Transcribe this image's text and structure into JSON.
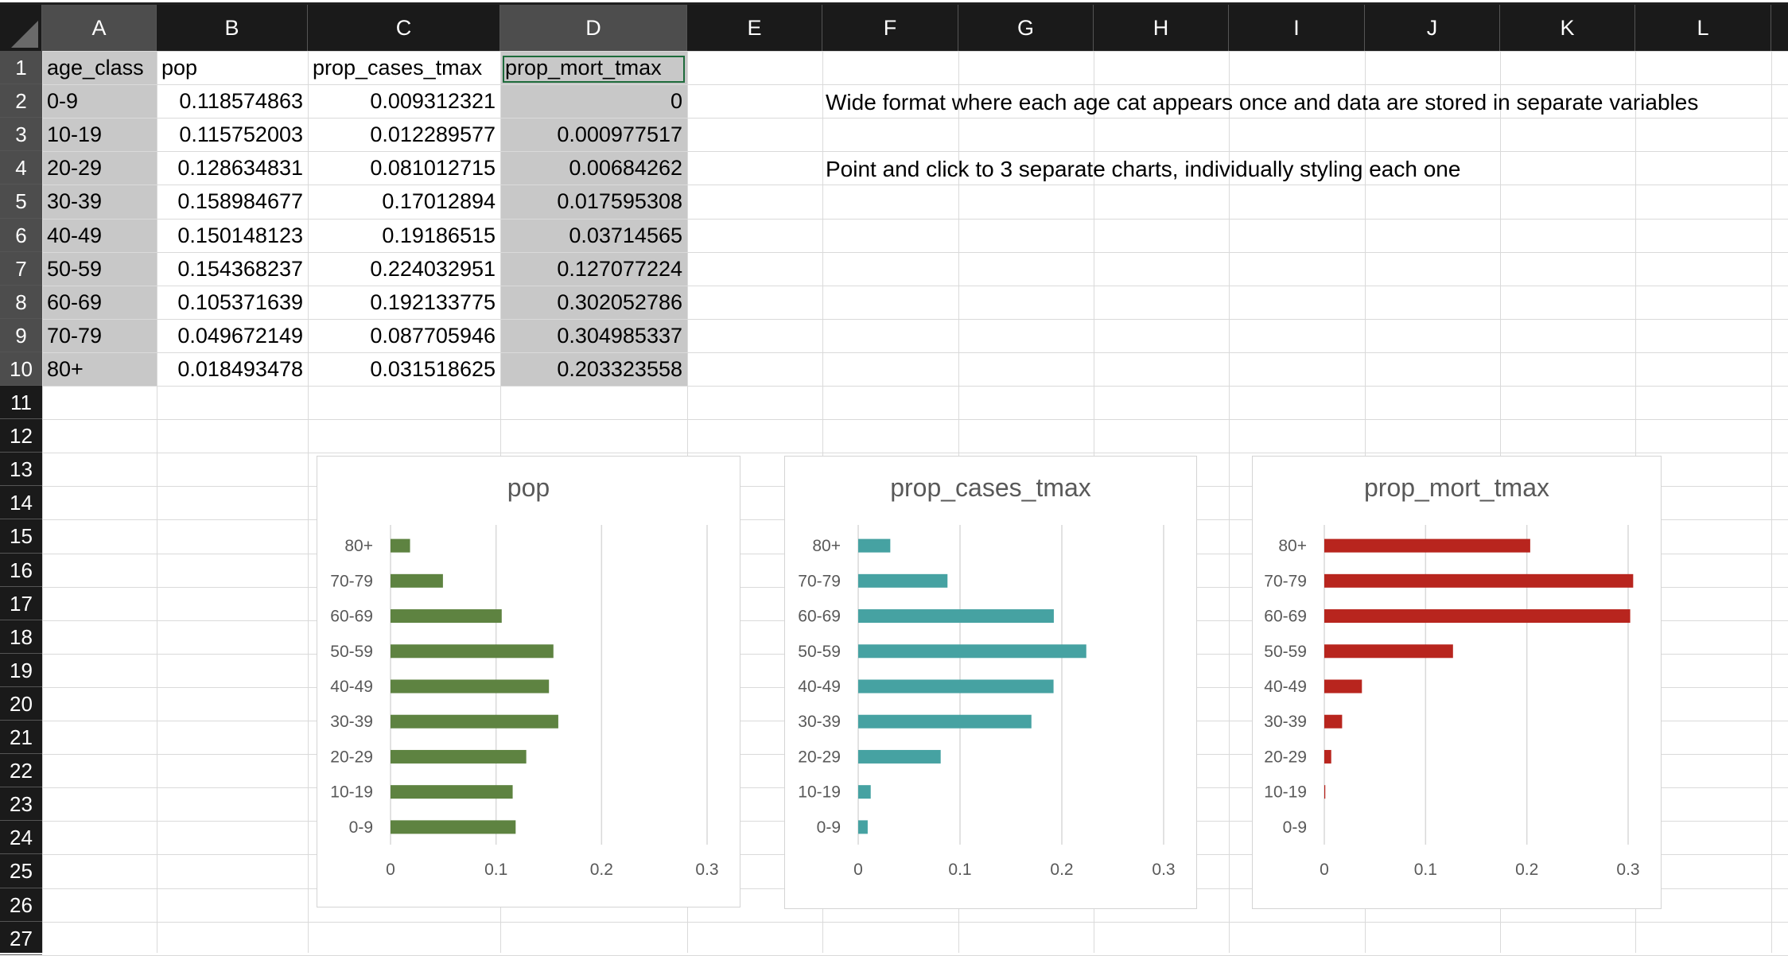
{
  "columns": [
    "A",
    "B",
    "C",
    "D",
    "E",
    "F",
    "G",
    "H",
    "I",
    "J",
    "K",
    "L"
  ],
  "rows": [
    "1",
    "2",
    "3",
    "4",
    "5",
    "6",
    "7",
    "8",
    "9",
    "10",
    "11",
    "12",
    "13",
    "14",
    "15",
    "16",
    "17",
    "18",
    "19",
    "20",
    "21",
    "22",
    "23",
    "24",
    "25",
    "26",
    "27"
  ],
  "headers": [
    "age_class",
    "pop",
    "prop_cases_tmax",
    "prop_mort_tmax"
  ],
  "table": [
    [
      "0-9",
      "0.118574863",
      "0.009312321",
      "0"
    ],
    [
      "10-19",
      "0.115752003",
      "0.012289577",
      "0.000977517"
    ],
    [
      "20-29",
      "0.128634831",
      "0.081012715",
      "0.00684262"
    ],
    [
      "30-39",
      "0.158984677",
      "0.17012894",
      "0.017595308"
    ],
    [
      "40-49",
      "0.150148123",
      "0.19186515",
      "0.03714565"
    ],
    [
      "50-59",
      "0.154368237",
      "0.224032951",
      "0.127077224"
    ],
    [
      "60-69",
      "0.105371639",
      "0.192133775",
      "0.302052786"
    ],
    [
      "70-79",
      "0.049672149",
      "0.087705946",
      "0.304985337"
    ],
    [
      "80+",
      "0.018493478",
      "0.031518625",
      "0.203323558"
    ]
  ],
  "notes": {
    "line1": "Wide format where each age cat appears once and data are stored in separate variables",
    "line2": "Point and click to 3 separate charts, individually styling each one"
  },
  "colors": {
    "pop": "#5e8341",
    "cases": "#46a2a2",
    "mort": "#b8251e",
    "axis_text": "#595959",
    "title_text": "#595959",
    "gridline": "#d9d9d9"
  },
  "chart_data": [
    {
      "type": "bar",
      "orientation": "horizontal",
      "title": "pop",
      "categories": [
        "0-9",
        "10-19",
        "20-29",
        "30-39",
        "40-49",
        "50-59",
        "60-69",
        "70-79",
        "80+"
      ],
      "values": [
        0.118574863,
        0.115752003,
        0.128634831,
        0.158984677,
        0.150148123,
        0.154368237,
        0.105371639,
        0.049672149,
        0.018493478
      ],
      "xlim": [
        0,
        0.3
      ],
      "xticks": [
        "0",
        "0.1",
        "0.2",
        "0.3"
      ],
      "color": "#5e8341"
    },
    {
      "type": "bar",
      "orientation": "horizontal",
      "title": "prop_cases_tmax",
      "categories": [
        "0-9",
        "10-19",
        "20-29",
        "30-39",
        "40-49",
        "50-59",
        "60-69",
        "70-79",
        "80+"
      ],
      "values": [
        0.009312321,
        0.012289577,
        0.081012715,
        0.17012894,
        0.19186515,
        0.224032951,
        0.192133775,
        0.087705946,
        0.031518625
      ],
      "xlim": [
        0,
        0.3
      ],
      "xticks": [
        "0",
        "0.1",
        "0.2",
        "0.3"
      ],
      "color": "#46a2a2"
    },
    {
      "type": "bar",
      "orientation": "horizontal",
      "title": "prop_mort_tmax",
      "categories": [
        "0-9",
        "10-19",
        "20-29",
        "30-39",
        "40-49",
        "50-59",
        "60-69",
        "70-79",
        "80+"
      ],
      "values": [
        0,
        0.000977517,
        0.00684262,
        0.017595308,
        0.03714565,
        0.127077224,
        0.302052786,
        0.304985337,
        0.203323558
      ],
      "xlim": [
        0,
        0.3
      ],
      "xticks": [
        "0",
        "0.1",
        "0.2",
        "0.3"
      ],
      "color": "#b8251e"
    }
  ]
}
